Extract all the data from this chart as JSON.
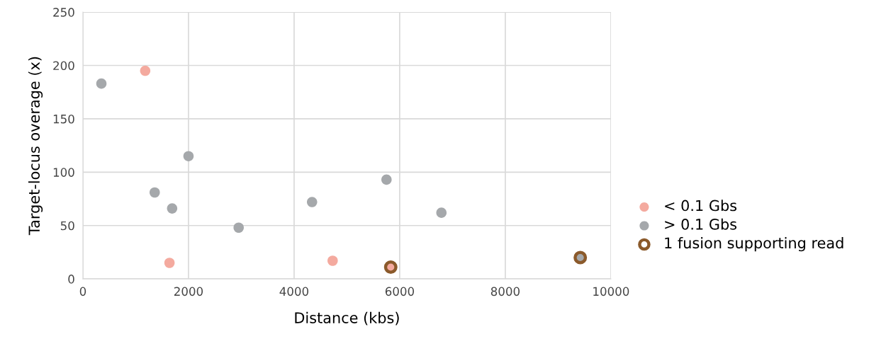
{
  "chart_data": {
    "type": "scatter",
    "xlabel": "Distance (kbs)",
    "ylabel": "Target-locus overage (x)",
    "xlim": [
      0,
      10000
    ],
    "xticks": [
      0,
      2000,
      4000,
      6000,
      8000,
      10000
    ],
    "ylim": [
      0,
      250
    ],
    "yticks": [
      0,
      50,
      100,
      150,
      200,
      250
    ],
    "grid": true,
    "legend": "right",
    "marker": "circle",
    "series": [
      {
        "name": "< 0.1 Gbs",
        "color": "#f4aa9f",
        "x": [
          1180,
          1640,
          4730,
          5830
        ],
        "values": [
          195,
          15,
          17,
          11
        ]
      },
      {
        "name": "> 0.1 Gbs",
        "color": "#a5a8ab",
        "x": [
          350,
          1360,
          1690,
          2000,
          2950,
          4340,
          5750,
          6790,
          9420
        ],
        "values": [
          183,
          81,
          66,
          115,
          48,
          72,
          93,
          62,
          20
        ]
      },
      {
        "name": "1 fusion supporting read",
        "color": "#8b5a2b",
        "x": [
          5830,
          9420
        ],
        "values": [
          11,
          20
        ]
      }
    ]
  }
}
